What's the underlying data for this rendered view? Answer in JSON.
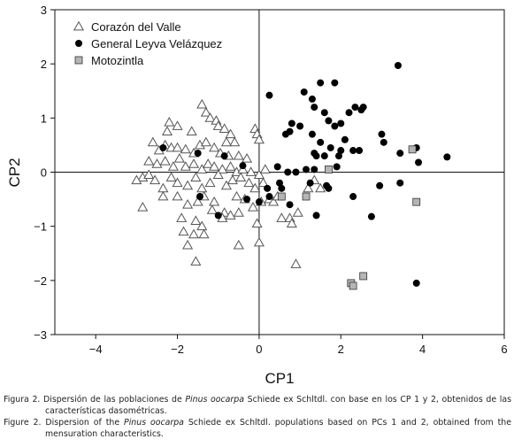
{
  "chart_data": {
    "type": "scatter",
    "xlabel": "CP1",
    "ylabel": "CP2",
    "xlim": [
      -5,
      6
    ],
    "ylim": [
      -3,
      3
    ],
    "xticks": [
      -4,
      -2,
      0,
      2,
      4,
      6
    ],
    "yticks": [
      -3,
      -2,
      -1,
      0,
      1,
      2,
      3
    ],
    "grid": false,
    "reference_lines": {
      "x": 0,
      "y": 0
    },
    "legend_position": "top-left",
    "series": [
      {
        "name": "Corazón del Valle",
        "marker": "triangle-open",
        "color": "#555555",
        "points": [
          [
            -2.2,
            0.92
          ],
          [
            -2.25,
            0.75
          ],
          [
            -2.0,
            0.85
          ],
          [
            -1.65,
            0.75
          ],
          [
            -1.4,
            1.25
          ],
          [
            -1.3,
            1.1
          ],
          [
            -1.2,
            1.0
          ],
          [
            -1.05,
            0.95
          ],
          [
            -1.0,
            0.85
          ],
          [
            -0.85,
            0.8
          ],
          [
            -0.7,
            0.7
          ],
          [
            -0.6,
            0.55
          ],
          [
            -0.8,
            0.55
          ],
          [
            -0.1,
            0.8
          ],
          [
            -0.05,
            0.7
          ],
          [
            0.0,
            0.6
          ],
          [
            -2.6,
            0.55
          ],
          [
            -2.45,
            0.4
          ],
          [
            -2.3,
            0.5
          ],
          [
            -2.15,
            0.45
          ],
          [
            -2.0,
            0.45
          ],
          [
            -1.8,
            0.42
          ],
          [
            -1.6,
            0.35
          ],
          [
            -1.45,
            0.5
          ],
          [
            -1.3,
            0.55
          ],
          [
            -1.1,
            0.45
          ],
          [
            -0.95,
            0.35
          ],
          [
            -0.75,
            0.3
          ],
          [
            -0.5,
            0.3
          ],
          [
            -0.3,
            0.25
          ],
          [
            -2.7,
            0.2
          ],
          [
            -2.5,
            0.15
          ],
          [
            -2.3,
            0.2
          ],
          [
            -2.1,
            0.1
          ],
          [
            -1.95,
            0.25
          ],
          [
            -1.8,
            0.1
          ],
          [
            -1.6,
            0.15
          ],
          [
            -1.4,
            0.05
          ],
          [
            -1.25,
            0.15
          ],
          [
            -1.1,
            0.1
          ],
          [
            -0.9,
            0.05
          ],
          [
            -0.7,
            0.1
          ],
          [
            -0.55,
            0.0
          ],
          [
            -0.4,
            0.05
          ],
          [
            -0.2,
            0.0
          ],
          [
            0.0,
            -0.05
          ],
          [
            0.15,
            0.05
          ],
          [
            -2.85,
            -0.1
          ],
          [
            -3.0,
            -0.15
          ],
          [
            -2.7,
            -0.05
          ],
          [
            -2.55,
            -0.15
          ],
          [
            -2.35,
            -0.3
          ],
          [
            -2.15,
            -0.1
          ],
          [
            -2.0,
            -0.2
          ],
          [
            -1.75,
            -0.25
          ],
          [
            -1.55,
            -0.1
          ],
          [
            -1.4,
            -0.3
          ],
          [
            -1.2,
            -0.2
          ],
          [
            -1.0,
            -0.05
          ],
          [
            -0.8,
            -0.25
          ],
          [
            -0.65,
            -0.15
          ],
          [
            -0.45,
            -0.1
          ],
          [
            -0.25,
            -0.2
          ],
          [
            -0.1,
            -0.3
          ],
          [
            0.1,
            -0.2
          ],
          [
            -2.85,
            -0.65
          ],
          [
            -2.35,
            -0.45
          ],
          [
            -2.0,
            -0.45
          ],
          [
            -1.75,
            -0.6
          ],
          [
            -1.5,
            -0.55
          ],
          [
            -1.35,
            -0.45
          ],
          [
            -1.1,
            -0.55
          ],
          [
            -0.85,
            -0.75
          ],
          [
            -0.7,
            -0.8
          ],
          [
            -0.55,
            -0.45
          ],
          [
            -0.35,
            -0.5
          ],
          [
            -0.15,
            -0.65
          ],
          [
            0.05,
            -0.55
          ],
          [
            0.25,
            -0.5
          ],
          [
            -1.9,
            -0.85
          ],
          [
            -1.55,
            -0.9
          ],
          [
            -1.4,
            -1.0
          ],
          [
            -1.15,
            -0.7
          ],
          [
            -0.9,
            -0.85
          ],
          [
            -0.5,
            -0.75
          ],
          [
            -0.05,
            -0.95
          ],
          [
            -1.85,
            -1.1
          ],
          [
            -1.6,
            -1.15
          ],
          [
            -1.35,
            -1.15
          ],
          [
            -1.75,
            -1.35
          ],
          [
            -1.55,
            -1.65
          ],
          [
            -0.5,
            -1.35
          ],
          [
            0.0,
            -1.3
          ],
          [
            0.35,
            -0.55
          ],
          [
            0.45,
            -0.45
          ],
          [
            0.55,
            -0.85
          ],
          [
            0.75,
            -0.85
          ],
          [
            0.8,
            -0.95
          ],
          [
            0.95,
            -0.75
          ],
          [
            1.2,
            -0.3
          ],
          [
            1.35,
            -0.15
          ],
          [
            1.5,
            -0.3
          ],
          [
            0.9,
            -1.7
          ]
        ]
      },
      {
        "name": "General Leyva Velázquez",
        "marker": "circle-filled",
        "color": "#000000",
        "points": [
          [
            0.25,
            1.42
          ],
          [
            1.1,
            1.48
          ],
          [
            1.3,
            1.35
          ],
          [
            1.5,
            1.65
          ],
          [
            1.85,
            1.65
          ],
          [
            1.6,
            1.1
          ],
          [
            1.35,
            1.2
          ],
          [
            2.2,
            1.1
          ],
          [
            2.35,
            1.2
          ],
          [
            2.5,
            1.15
          ],
          [
            2.55,
            1.2
          ],
          [
            3.4,
            1.97
          ],
          [
            0.8,
            0.9
          ],
          [
            1.0,
            0.85
          ],
          [
            1.7,
            0.95
          ],
          [
            1.85,
            0.85
          ],
          [
            2.0,
            0.9
          ],
          [
            1.3,
            0.7
          ],
          [
            0.75,
            0.75
          ],
          [
            0.65,
            0.7
          ],
          [
            2.1,
            0.6
          ],
          [
            1.5,
            0.55
          ],
          [
            1.75,
            0.45
          ],
          [
            2.3,
            0.4
          ],
          [
            2.45,
            0.4
          ],
          [
            3.0,
            0.7
          ],
          [
            3.05,
            0.55
          ],
          [
            3.45,
            0.35
          ],
          [
            3.85,
            0.45
          ],
          [
            4.6,
            0.28
          ],
          [
            1.4,
            0.3
          ],
          [
            1.35,
            0.35
          ],
          [
            1.6,
            0.3
          ],
          [
            1.95,
            0.3
          ],
          [
            2.0,
            0.4
          ],
          [
            3.9,
            0.18
          ],
          [
            0.45,
            0.1
          ],
          [
            0.7,
            0.0
          ],
          [
            0.9,
            0.0
          ],
          [
            1.15,
            0.05
          ],
          [
            1.35,
            0.05
          ],
          [
            1.9,
            0.1
          ],
          [
            -0.4,
            0.12
          ],
          [
            -1.5,
            0.35
          ],
          [
            -2.35,
            0.45
          ],
          [
            0.5,
            -0.2
          ],
          [
            0.2,
            -0.3
          ],
          [
            0.25,
            -0.45
          ],
          [
            0.55,
            -0.3
          ],
          [
            1.25,
            -0.2
          ],
          [
            1.65,
            -0.25
          ],
          [
            1.7,
            -0.3
          ],
          [
            0.0,
            -0.55
          ],
          [
            -0.3,
            -0.5
          ],
          [
            2.3,
            -0.45
          ],
          [
            2.95,
            -0.25
          ],
          [
            3.45,
            -0.2
          ],
          [
            0.75,
            -0.6
          ],
          [
            1.4,
            -0.8
          ],
          [
            2.75,
            -0.82
          ],
          [
            -1.45,
            -0.45
          ],
          [
            -1.0,
            -0.8
          ],
          [
            -0.85,
            0.3
          ],
          [
            3.85,
            -2.05
          ]
        ]
      },
      {
        "name": "Motozintla",
        "marker": "square-filled",
        "color": "#b5b5b5",
        "points": [
          [
            1.7,
            0.05
          ],
          [
            3.75,
            0.42
          ],
          [
            0.55,
            -0.45
          ],
          [
            1.15,
            -0.45
          ],
          [
            3.85,
            -0.55
          ],
          [
            2.25,
            -2.05
          ],
          [
            2.3,
            -2.1
          ],
          [
            2.55,
            -1.92
          ]
        ]
      }
    ]
  },
  "captions": [
    {
      "pre": "Figura 2. Dispersión de las poblaciones de ",
      "italic": "Pinus oocarpa",
      "post": " Schiede ex Schltdl. con base en los CP 1 y 2, obtenidos de las características dasométricas."
    },
    {
      "pre": "Figure 2. Dispersion of the ",
      "italic": "Pinus oocarpa",
      "post": " Schiede ex Schltdl. populations based on PCs 1 and 2, obtained from the mensuration characteristics."
    }
  ]
}
